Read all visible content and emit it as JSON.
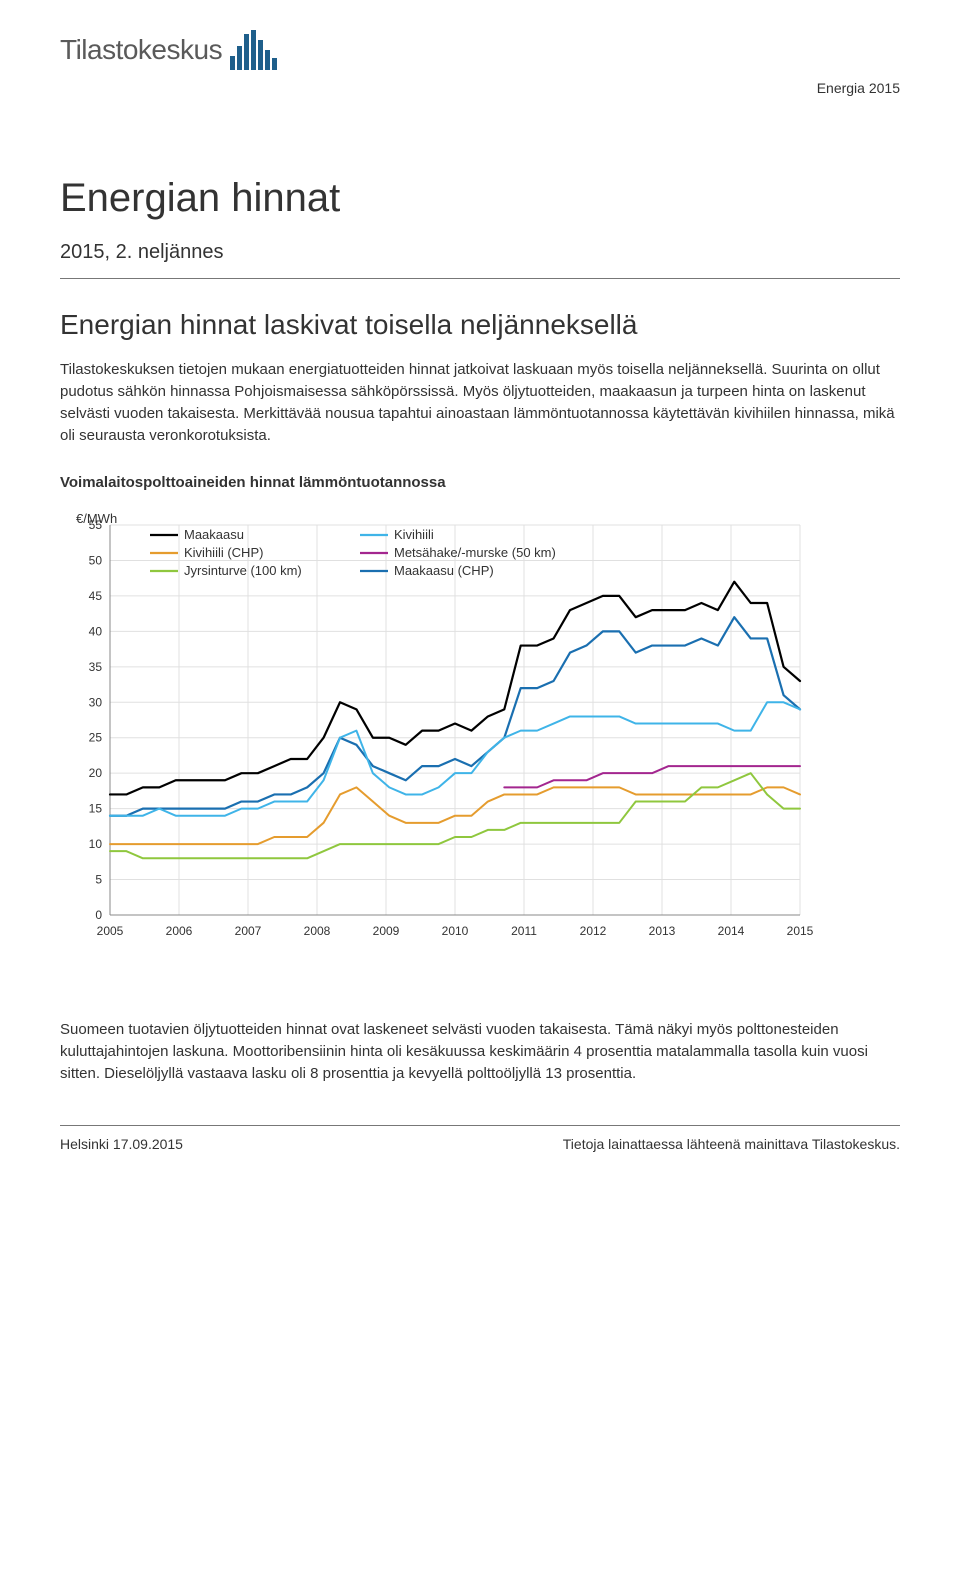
{
  "header": {
    "logo_text": "Tilastokeskus",
    "top_right": "Energia 2015"
  },
  "title": "Energian hinnat",
  "subtitle": "2015, 2. neljännes",
  "section_heading": "Energian hinnat laskivat toisella neljänneksellä",
  "intro_para": "Tilastokeskuksen tietojen mukaan energiatuotteiden hinnat jatkoivat laskuaan myös toisella neljänneksellä. Suurinta on ollut pudotus sähkön hinnassa Pohjoismaisessa sähköpörssissä. Myös öljytuotteiden, maakaasun ja turpeen hinta on laskenut selvästi vuoden takaisesta. Merkittävää nousua tapahtui ainoastaan lämmöntuotannossa käytettävän kivihiilen hinnassa, mikä oli seurausta veronkorotuksista.",
  "chart": {
    "title": "Voimalaitospolttoaineiden hinnat lämmöntuotannossa",
    "y_label": "€/MWh",
    "y_min": 0,
    "y_max": 55,
    "y_tick_step": 5,
    "x_labels": [
      "2005",
      "2006",
      "2007",
      "2008",
      "2009",
      "2010",
      "2011",
      "2012",
      "2013",
      "2014",
      "2015"
    ],
    "x_min_idx": 0,
    "x_max_idx": 42,
    "grid_color": "#e0e0e0",
    "axis_color": "#888888",
    "background_color": "#ffffff",
    "legend": [
      {
        "label": "Maakaasu",
        "color": "#000000"
      },
      {
        "label": "Kivihiili (CHP)",
        "color": "#e59c2e"
      },
      {
        "label": "Jyrsinturve (100 km)",
        "color": "#8fc73e"
      },
      {
        "label": "Kivihiili",
        "color": "#3fb4e8"
      },
      {
        "label": "Metsähake/-murske (50 km)",
        "color": "#a3268f"
      },
      {
        "label": "Maakaasu (CHP)",
        "color": "#1a6fb0"
      }
    ],
    "series": [
      {
        "name": "Maakaasu",
        "color": "#000000",
        "width": 2.2,
        "values": [
          17,
          17,
          18,
          18,
          19,
          19,
          19,
          19,
          20,
          20,
          21,
          22,
          22,
          25,
          30,
          29,
          25,
          25,
          24,
          26,
          26,
          27,
          26,
          28,
          29,
          38,
          38,
          39,
          43,
          44,
          45,
          45,
          42,
          43,
          43,
          43,
          44,
          43,
          47,
          44,
          44,
          35,
          33
        ]
      },
      {
        "name": "Maakaasu (CHP)",
        "color": "#1a6fb0",
        "width": 2.2,
        "values": [
          14,
          14,
          15,
          15,
          15,
          15,
          15,
          15,
          16,
          16,
          17,
          17,
          18,
          20,
          25,
          24,
          21,
          20,
          19,
          21,
          21,
          22,
          21,
          23,
          25,
          32,
          32,
          33,
          37,
          38,
          40,
          40,
          37,
          38,
          38,
          38,
          39,
          38,
          42,
          39,
          39,
          31,
          29
        ]
      },
      {
        "name": "Kivihiili",
        "color": "#3fb4e8",
        "width": 2.0,
        "values": [
          14,
          14,
          14,
          15,
          14,
          14,
          14,
          14,
          15,
          15,
          16,
          16,
          16,
          19,
          25,
          26,
          20,
          18,
          17,
          17,
          18,
          20,
          20,
          23,
          25,
          26,
          26,
          27,
          28,
          28,
          28,
          28,
          27,
          27,
          27,
          27,
          27,
          27,
          26,
          26,
          30,
          30,
          29
        ]
      },
      {
        "name": "Metsähake/-murske (50 km)",
        "color": "#a3268f",
        "width": 2.0,
        "values": [
          null,
          null,
          null,
          null,
          null,
          null,
          null,
          null,
          null,
          null,
          null,
          null,
          null,
          null,
          null,
          null,
          null,
          null,
          null,
          null,
          null,
          null,
          null,
          null,
          18,
          18,
          18,
          19,
          19,
          19,
          20,
          20,
          20,
          20,
          21,
          21,
          21,
          21,
          21,
          21,
          21,
          21,
          21
        ]
      },
      {
        "name": "Kivihiili (CHP)",
        "color": "#e59c2e",
        "width": 2.0,
        "values": [
          10,
          10,
          10,
          10,
          10,
          10,
          10,
          10,
          10,
          10,
          11,
          11,
          11,
          13,
          17,
          18,
          16,
          14,
          13,
          13,
          13,
          14,
          14,
          16,
          17,
          17,
          17,
          18,
          18,
          18,
          18,
          18,
          17,
          17,
          17,
          17,
          17,
          17,
          17,
          17,
          18,
          18,
          17
        ]
      },
      {
        "name": "Jyrsinturve (100 km)",
        "color": "#8fc73e",
        "width": 2.0,
        "values": [
          9,
          9,
          8,
          8,
          8,
          8,
          8,
          8,
          8,
          8,
          8,
          8,
          8,
          9,
          10,
          10,
          10,
          10,
          10,
          10,
          10,
          11,
          11,
          12,
          12,
          13,
          13,
          13,
          13,
          13,
          13,
          13,
          16,
          16,
          16,
          16,
          18,
          18,
          19,
          20,
          17,
          15,
          15
        ]
      }
    ]
  },
  "closing_para": "Suomeen tuotavien öljytuotteiden hinnat ovat laskeneet selvästi vuoden takaisesta. Tämä näkyi myös polttonesteiden kuluttajahintojen laskuna. Moottoribensiinin hinta oli kesäkuussa keskimäärin 4 prosenttia matalammalla tasolla kuin vuosi sitten. Dieselöljyllä vastaava lasku oli 8 prosenttia ja kevyellä polttoöljyllä 13 prosenttia.",
  "footer": {
    "left": "Helsinki 17.09.2015",
    "right": "Tietoja lainattaessa lähteenä mainittava Tilastokeskus."
  }
}
